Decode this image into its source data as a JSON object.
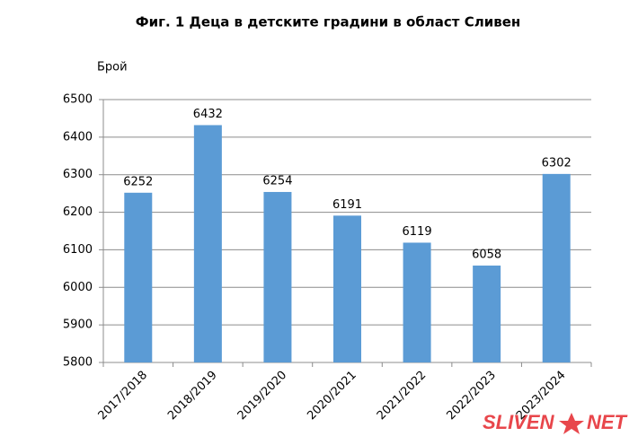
{
  "chart_data": {
    "type": "bar",
    "title": "Фиг. 1 Деца в детските градини в област Сливен",
    "y_label": "Брой",
    "categories": [
      "2017/2018",
      "2018/2019",
      "2019/2020",
      "2020/2021",
      "2021/2022",
      "2022/2023",
      "2023/2024"
    ],
    "values": [
      6252,
      6432,
      6254,
      6191,
      6119,
      6058,
      6302
    ],
    "color": "#5b9bd5",
    "ylim": [
      5800,
      6500
    ],
    "yticks": [
      5800,
      5900,
      6000,
      6100,
      6200,
      6300,
      6400,
      6500
    ],
    "grid": true,
    "watermark": [
      "SLIVEN",
      "NET"
    ]
  }
}
